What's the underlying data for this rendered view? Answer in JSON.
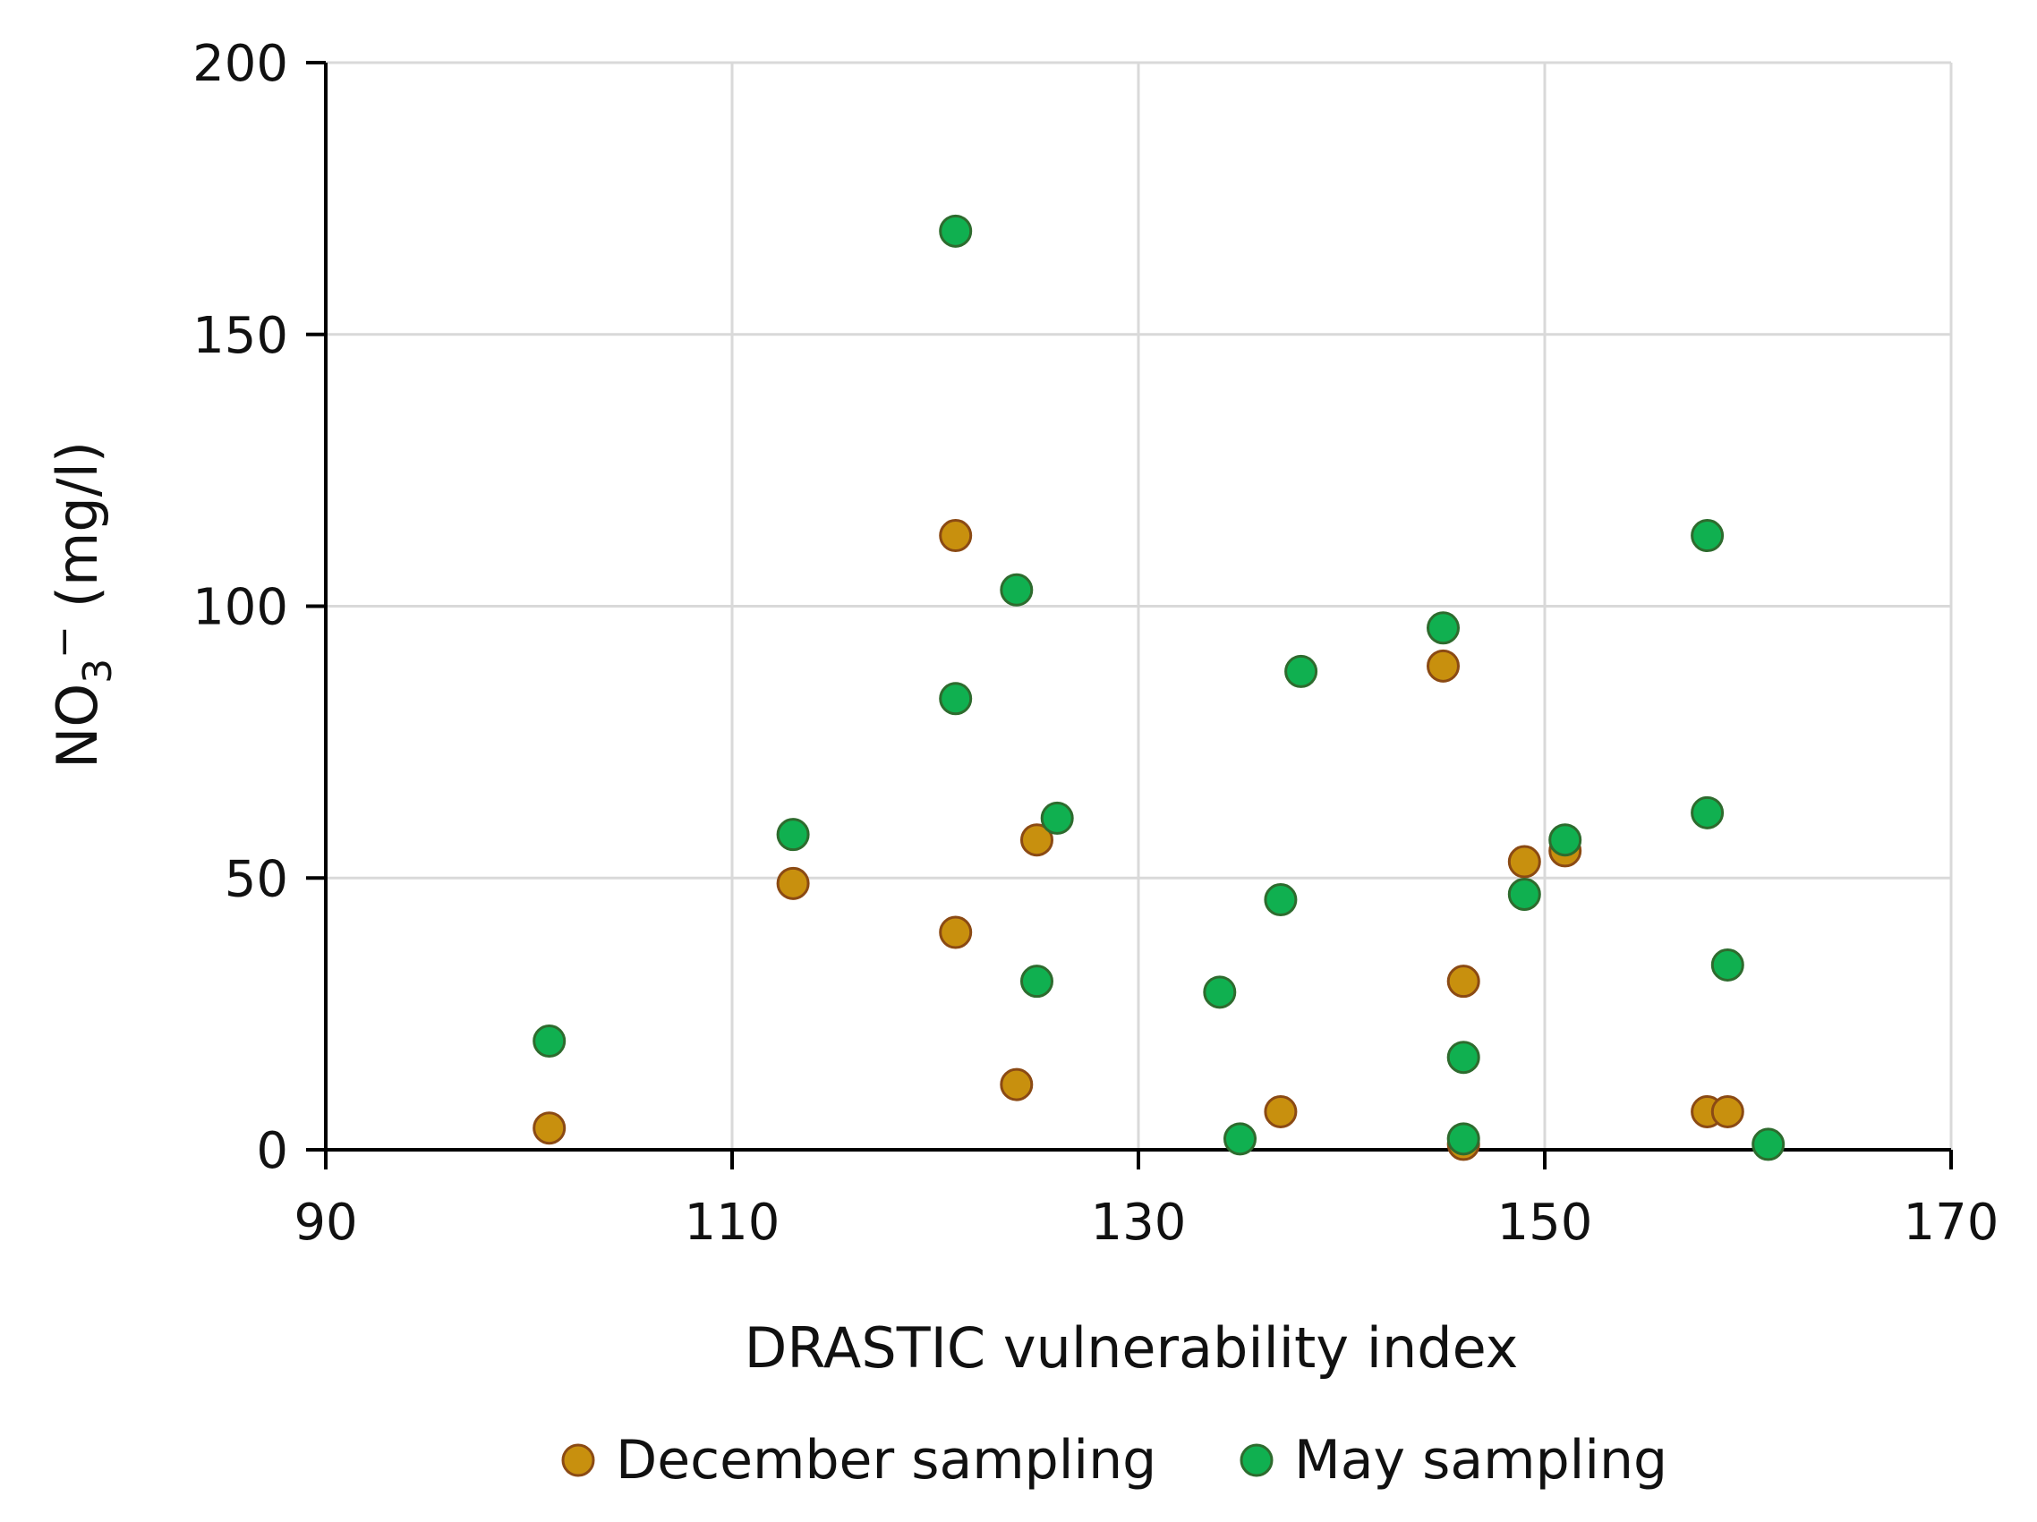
{
  "chart_data": {
    "type": "scatter",
    "title": "",
    "xlabel": "DRASTIC vulnerability index",
    "ylabel": {
      "main": "NO",
      "subscript": "3",
      "superscript": "−",
      "unit": " (mg/l)"
    },
    "xlim": [
      90,
      170
    ],
    "ylim": [
      0,
      200
    ],
    "xticks": [
      90,
      110,
      130,
      150,
      170
    ],
    "yticks": [
      0,
      50,
      100,
      150,
      200
    ],
    "grid": true,
    "legend_position": "bottom",
    "series": [
      {
        "name": "December sampling",
        "color": "#C8900E",
        "edge_color": "#8B4A14",
        "points": [
          {
            "x": 101,
            "y": 4
          },
          {
            "x": 113,
            "y": 49
          },
          {
            "x": 121,
            "y": 113
          },
          {
            "x": 121,
            "y": 40
          },
          {
            "x": 124,
            "y": 12
          },
          {
            "x": 125,
            "y": 57
          },
          {
            "x": 137,
            "y": 7
          },
          {
            "x": 145,
            "y": 89
          },
          {
            "x": 146,
            "y": 31
          },
          {
            "x": 146,
            "y": 1
          },
          {
            "x": 149,
            "y": 53
          },
          {
            "x": 151,
            "y": 55
          },
          {
            "x": 158,
            "y": 7
          },
          {
            "x": 159,
            "y": 7
          }
        ]
      },
      {
        "name": "May sampling",
        "color": "#10B050",
        "edge_color": "#2E6B2E",
        "points": [
          {
            "x": 101,
            "y": 20
          },
          {
            "x": 113,
            "y": 58
          },
          {
            "x": 121,
            "y": 169
          },
          {
            "x": 121,
            "y": 83
          },
          {
            "x": 124,
            "y": 103
          },
          {
            "x": 125,
            "y": 31
          },
          {
            "x": 126,
            "y": 61
          },
          {
            "x": 134,
            "y": 29
          },
          {
            "x": 135,
            "y": 2
          },
          {
            "x": 137,
            "y": 46
          },
          {
            "x": 138,
            "y": 88
          },
          {
            "x": 145,
            "y": 96
          },
          {
            "x": 146,
            "y": 17
          },
          {
            "x": 146,
            "y": 2
          },
          {
            "x": 149,
            "y": 47
          },
          {
            "x": 151,
            "y": 57
          },
          {
            "x": 158,
            "y": 113
          },
          {
            "x": 158,
            "y": 62
          },
          {
            "x": 159,
            "y": 34
          },
          {
            "x": 161,
            "y": 1
          }
        ]
      }
    ]
  }
}
